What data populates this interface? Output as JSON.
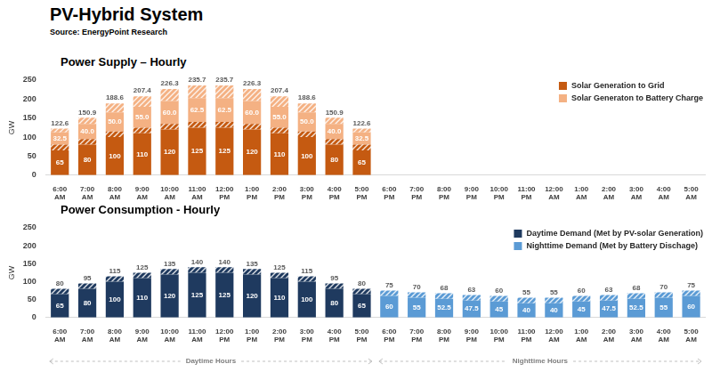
{
  "title": "PV-Hybrid System",
  "source": "Source: EnergyPoint Research",
  "chart_data": [
    {
      "type": "bar",
      "title": "Power Supply – Hourly",
      "y_label": "GW",
      "categories": [
        "6:00 AM",
        "7:00 AM",
        "8:00 AM",
        "9:00 AM",
        "10:00 AM",
        "11:00 AM",
        "12:00 PM",
        "1:00 PM",
        "2:00 PM",
        "3:00 PM",
        "4:00 PM",
        "5:00 PM",
        "6:00 PM",
        "7:00 PM",
        "8:00 PM",
        "9:00 PM",
        "10:00 PM",
        "11:00 PM",
        "12:00 AM",
        "1:00 AM",
        "2:00 AM",
        "3:00 AM",
        "4:00 AM",
        "5:00 AM"
      ],
      "series": [
        {
          "name": "Solar Generation to Grid",
          "color": "#c55a11",
          "values": [
            65,
            80,
            100,
            110,
            120,
            125,
            125,
            120,
            110,
            100,
            80,
            65,
            null,
            null,
            null,
            null,
            null,
            null,
            null,
            null,
            null,
            null,
            null,
            null
          ],
          "hatched": [
            15,
            15,
            15,
            15,
            15,
            15,
            15,
            15,
            15,
            15,
            15,
            15,
            null,
            null,
            null,
            null,
            null,
            null,
            null,
            null,
            null,
            null,
            null,
            null
          ]
        },
        {
          "name": "Solar Generaton to Battery Charge",
          "color": "#f4b183",
          "values": [
            32.5,
            40,
            50,
            55,
            60,
            62.5,
            62.5,
            60,
            55,
            50,
            40,
            32.5,
            null,
            null,
            null,
            null,
            null,
            null,
            null,
            null,
            null,
            null,
            null,
            null
          ],
          "value_labels": [
            "32.5",
            "40.0",
            "50.0",
            "55.0",
            "60.0",
            "62.5",
            "62.5",
            "60.0",
            "55.0",
            "50.0",
            "40.0",
            "32.5",
            null,
            null,
            null,
            null,
            null,
            null,
            null,
            null,
            null,
            null,
            null,
            null
          ],
          "hatched": [
            10.1,
            15.9,
            23.6,
            27.4,
            31.3,
            33.2,
            33.2,
            31.3,
            27.4,
            23.6,
            15.9,
            10.1,
            null,
            null,
            null,
            null,
            null,
            null,
            null,
            null,
            null,
            null,
            null,
            null
          ]
        }
      ],
      "totals": [
        122.6,
        150.9,
        188.6,
        207.4,
        226.3,
        235.7,
        235.7,
        226.3,
        207.4,
        188.6,
        150.9,
        122.6,
        null,
        null,
        null,
        null,
        null,
        null,
        null,
        null,
        null,
        null,
        null,
        null
      ],
      "ylim": [
        0,
        250
      ],
      "yticks": [
        0,
        50,
        100,
        150,
        200,
        250
      ],
      "stacked": true,
      "data_labels": true,
      "grid": false,
      "legend": "upper right"
    },
    {
      "type": "bar",
      "title": "Power Consumption - Hourly",
      "y_label": "GW",
      "categories": [
        "6:00 AM",
        "7:00 AM",
        "8:00 AM",
        "9:00 AM",
        "10:00 AM",
        "11:00 AM",
        "12:00 PM",
        "1:00 PM",
        "2:00 PM",
        "3:00 PM",
        "4:00 PM",
        "5:00 PM",
        "6:00 PM",
        "7:00 PM",
        "8:00 PM",
        "9:00 PM",
        "10:00 PM",
        "11:00 PM",
        "12:00 AM",
        "1:00 AM",
        "2:00 AM",
        "3:00 AM",
        "4:00 AM",
        "5:00 AM"
      ],
      "series": [
        {
          "name": "Daytime Demand (Met by PV-solar Generation)",
          "color": "#1f3a5f",
          "values": [
            65,
            80,
            100,
            110,
            120,
            125,
            125,
            120,
            110,
            100,
            80,
            65,
            null,
            null,
            null,
            null,
            null,
            null,
            null,
            null,
            null,
            null,
            null,
            null
          ],
          "hatched": [
            15,
            15,
            15,
            15,
            15,
            15,
            15,
            15,
            15,
            15,
            15,
            15,
            null,
            null,
            null,
            null,
            null,
            null,
            null,
            null,
            null,
            null,
            null,
            null
          ]
        },
        {
          "name": "Nighttime Demand (Met by Battery Dischage)",
          "color": "#5b9bd5",
          "values": [
            null,
            null,
            null,
            null,
            null,
            null,
            null,
            null,
            null,
            null,
            null,
            null,
            60,
            55,
            52.5,
            47.5,
            45,
            40,
            40,
            45,
            47.5,
            52.5,
            55,
            60
          ],
          "hatched": [
            null,
            null,
            null,
            null,
            null,
            null,
            null,
            null,
            null,
            null,
            null,
            null,
            15,
            15,
            15.5,
            15.5,
            15,
            15,
            15,
            15,
            15.5,
            15.5,
            15,
            15
          ]
        }
      ],
      "totals": [
        80,
        95,
        115,
        125,
        135,
        140,
        140,
        135,
        125,
        115,
        95,
        80,
        75,
        70,
        68,
        63,
        60,
        55,
        55,
        60,
        63,
        68,
        70,
        75
      ],
      "ylim": [
        0,
        250
      ],
      "yticks": [
        0,
        50,
        100,
        150,
        200,
        250
      ],
      "stacked": true,
      "data_labels": true,
      "grid": false,
      "legend": "upper right",
      "spans": [
        {
          "label": "Daytime Hours",
          "start": "6:00 AM",
          "end": "5:00 PM"
        },
        {
          "label": "Nighttime Hours",
          "start": "6:00 PM",
          "end": "5:00 AM"
        }
      ]
    }
  ]
}
